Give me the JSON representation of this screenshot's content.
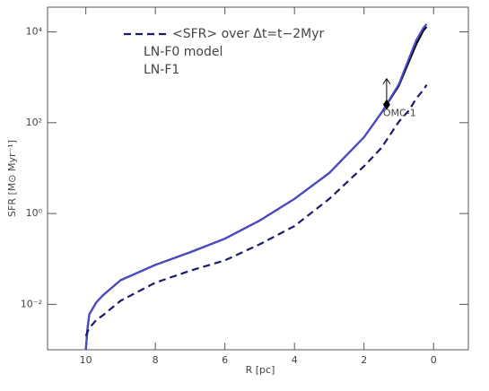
{
  "chart_data": {
    "type": "line",
    "ylabel": "SFR [M⊙ Myr⁻¹]",
    "xlabel": "R [pc]",
    "ylog": true,
    "legend": "upper-left",
    "xlim": [
      11.1,
      -1
    ],
    "ylim": [
      0.001,
      35000
    ],
    "xticks": [
      10,
      8,
      6,
      4,
      2,
      0
    ],
    "yticks": [
      {
        "value": 0.01,
        "label": "10⁻²"
      },
      {
        "value": 1,
        "label": "10⁰"
      },
      {
        "value": 100,
        "label": "10²"
      },
      {
        "value": 10000,
        "label": "10⁴"
      }
    ],
    "x": [
      10,
      9.95,
      9.9,
      9.7,
      9.5,
      9,
      8,
      7,
      6,
      5,
      4,
      3,
      2,
      1.5,
      1,
      0.7,
      0.5,
      0.3,
      0.2
    ],
    "series": [
      {
        "name": "<SFR> over Δt=t−2Myr",
        "color": "#1a1a6e",
        "dash": true,
        "values": [
          0.002,
          0.0025,
          0.003,
          0.0045,
          0.0058,
          0.012,
          0.03,
          0.055,
          0.093,
          0.21,
          0.53,
          2.1,
          11,
          28,
          105,
          190,
          340,
          520,
          680
        ]
      },
      {
        "name": "LN-F0 model",
        "color": "#4a4acc",
        "dash": false,
        "values": [
          0.001,
          0.003,
          0.006,
          0.011,
          0.016,
          0.034,
          0.074,
          0.14,
          0.28,
          0.7,
          2.1,
          7.8,
          48,
          165,
          700,
          2700,
          6500,
          12000,
          15000
        ]
      },
      {
        "name": "LN-F1",
        "color": "#000000",
        "dash": false,
        "values": [
          0.001,
          0.003,
          0.006,
          0.011,
          0.016,
          0.034,
          0.074,
          0.14,
          0.28,
          0.7,
          2.1,
          7.8,
          48,
          165,
          650,
          2300,
          5300,
          10500,
          13000
        ]
      }
    ],
    "points": [
      {
        "x": 1.35,
        "y": 250,
        "arrow_to": 930,
        "label": "OMC-1"
      }
    ]
  }
}
